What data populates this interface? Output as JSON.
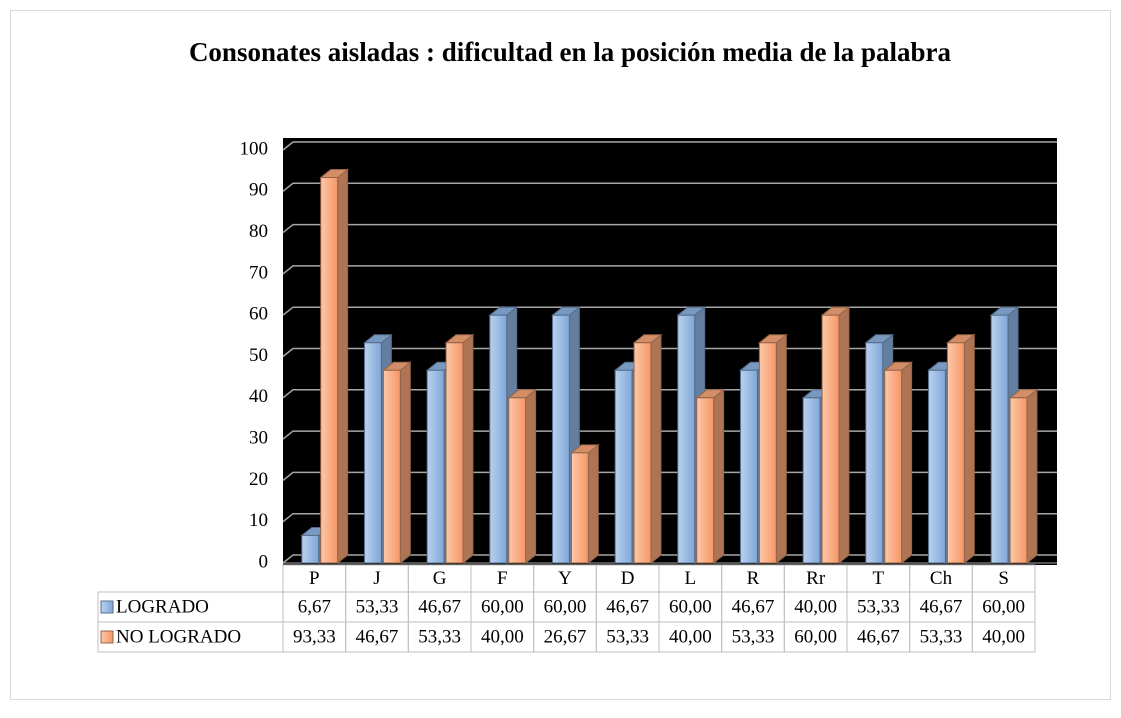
{
  "chart_data": {
    "type": "bar3d",
    "title": "Consonates aisladas : dificultad en la posición media de la palabra",
    "categories": [
      "P",
      "J",
      "G",
      "F",
      "Y",
      "D",
      "L",
      "R",
      "Rr",
      "T",
      "Ch",
      "S"
    ],
    "series": [
      {
        "name": "LOGRADO",
        "color": "#8db4e2",
        "values": [
          6.67,
          53.33,
          46.67,
          60,
          60,
          46.67,
          60,
          46.67,
          40,
          53.33,
          46.67,
          60
        ],
        "value_labels": [
          "6,67",
          "53,33",
          "46,67",
          "60,00",
          "60,00",
          "46,67",
          "60,00",
          "46,67",
          "40,00",
          "53,33",
          "46,67",
          "60,00"
        ]
      },
      {
        "name": "NO LOGRADO",
        "color": "#f8a77a",
        "values": [
          93.33,
          46.67,
          53.33,
          40,
          26.67,
          53.33,
          40,
          53.33,
          60,
          46.67,
          53.33,
          40
        ],
        "value_labels": [
          "93,33",
          "46,67",
          "53,33",
          "40,00",
          "26,67",
          "53,33",
          "40,00",
          "53,33",
          "60,00",
          "46,67",
          "53,33",
          "40,00"
        ]
      }
    ],
    "ylim": [
      0,
      100
    ],
    "yticks": [
      0,
      10,
      20,
      30,
      40,
      50,
      60,
      70,
      80,
      90,
      100
    ],
    "grid": true
  }
}
